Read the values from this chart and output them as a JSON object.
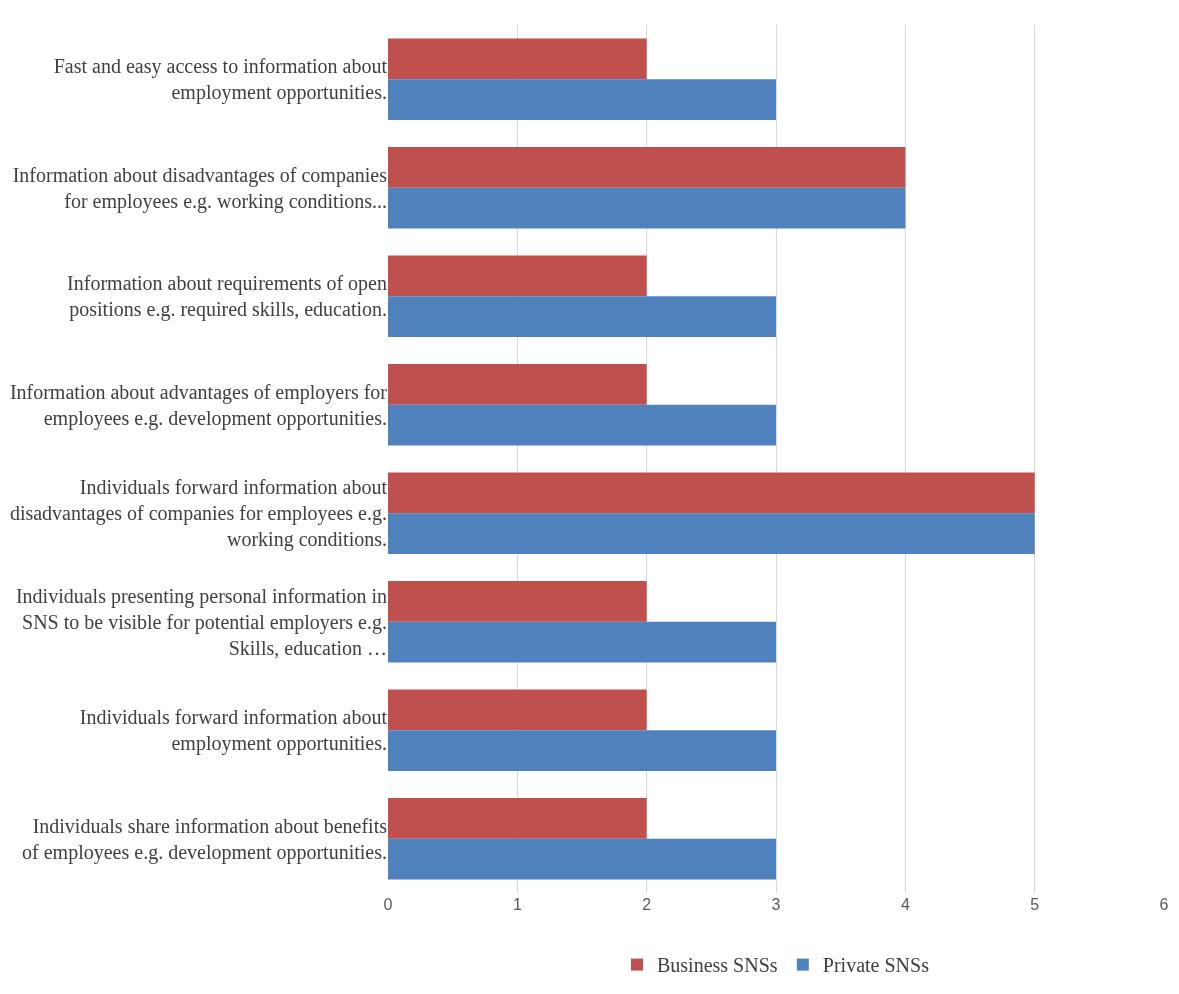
{
  "chart_data": {
    "type": "bar",
    "orientation": "horizontal",
    "categories": [
      "Fast and easy access to information about employment opportunities.",
      "Information about disadvantages of companies for employees e.g. working conditions...",
      "Information about requirements of open positions e.g. required skills, education.",
      "Information about advantages of employers for employees e.g. development opportunities.",
      "Individuals forward information about disadvantages of companies for employees e.g. working conditions.",
      "Individuals presenting personal information in SNS to be visible for potential employers e.g. Skills, education …",
      "Individuals forward information about employment opportunities.",
      "Individuals share information about benefits of employees e.g. development opportunities."
    ],
    "series": [
      {
        "name": "Business SNSs",
        "color": "#c0504d",
        "values": [
          2,
          4,
          2,
          2,
          5,
          2,
          2,
          2
        ]
      },
      {
        "name": "Private SNSs",
        "color": "#4f81bd",
        "values": [
          3,
          4,
          3,
          3,
          5,
          3,
          3,
          3
        ]
      }
    ],
    "xlim": [
      0,
      6
    ],
    "xticks": [
      0,
      1,
      2,
      3,
      4,
      5,
      6
    ],
    "grid": "x",
    "legend": "bottom"
  }
}
